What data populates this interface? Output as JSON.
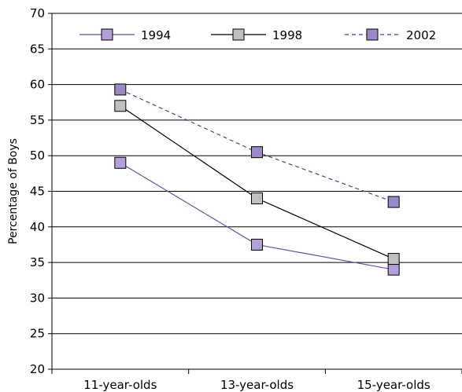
{
  "chart_data": {
    "type": "line",
    "title": "",
    "xlabel": "",
    "ylabel": "Percentage of Boys",
    "categories": [
      "11-year-olds",
      "13-year-olds",
      "15-year-olds"
    ],
    "ylim": [
      20,
      70
    ],
    "yticks": [
      20,
      25,
      30,
      35,
      40,
      45,
      50,
      55,
      60,
      65,
      70
    ],
    "grid": "horizontal",
    "legend": "top",
    "series": [
      {
        "name": "1994",
        "values": [
          49,
          37.5,
          34
        ],
        "line_color": "#6b4fa3",
        "marker_color": "#b3a0d8",
        "dash": "solid"
      },
      {
        "name": "1998",
        "values": [
          57,
          44,
          35.5
        ],
        "line_color": "#000000",
        "marker_color": "#bfbfbf",
        "dash": "solid"
      },
      {
        "name": "2002",
        "values": [
          59.3,
          50.5,
          43.5
        ],
        "line_color": "#4a3f8c",
        "marker_color": "#9b88c9",
        "dash": "dashed"
      }
    ]
  }
}
